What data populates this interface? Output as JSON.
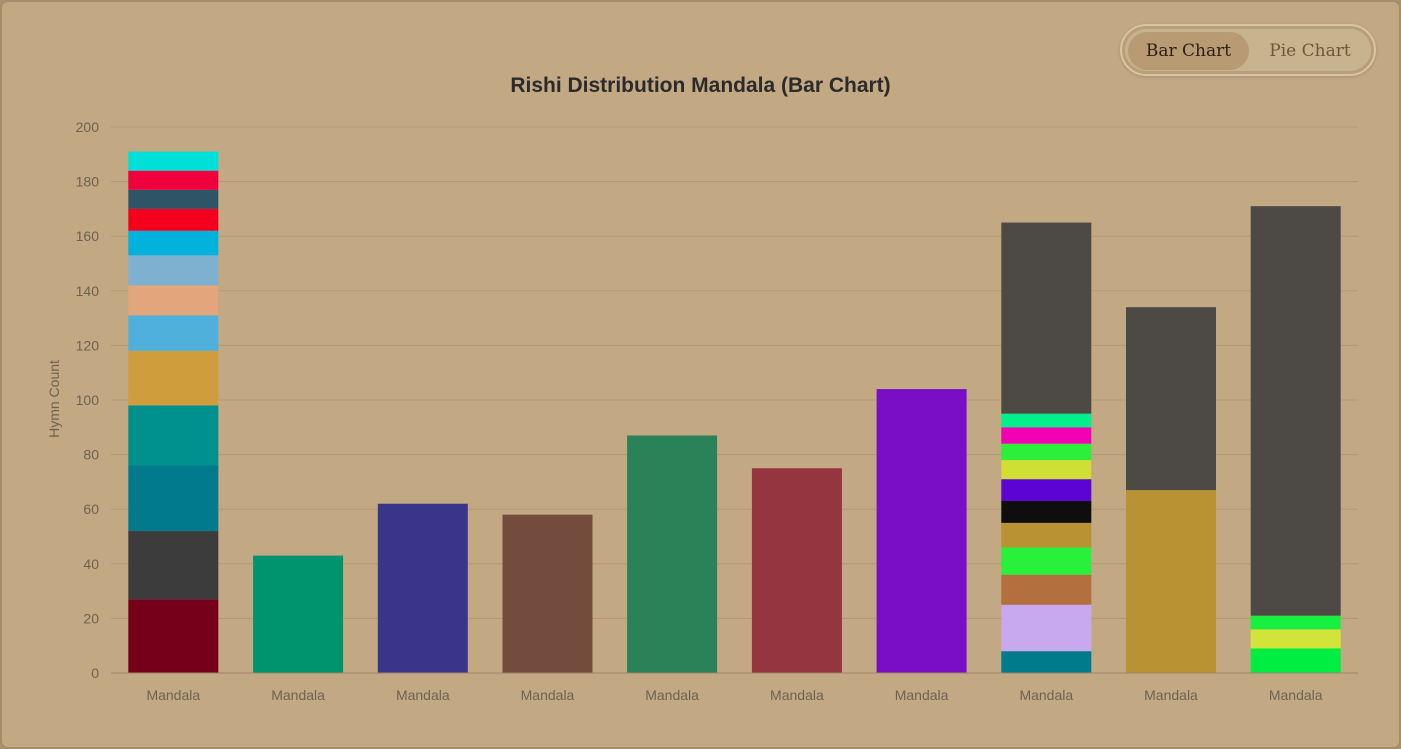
{
  "toggle": {
    "bar_label": "Bar Chart",
    "pie_label": "Pie Chart"
  },
  "chart_data": {
    "type": "bar",
    "stacked": true,
    "title": "Rishi Distribution Mandala (Bar Chart)",
    "xlabel": "",
    "ylabel": "Hymn Count",
    "ylim": [
      0,
      200
    ],
    "yticks": [
      0,
      20,
      40,
      60,
      80,
      100,
      120,
      140,
      160,
      180,
      200
    ],
    "grid": true,
    "categories": [
      "Mandala",
      "Mandala",
      "Mandala",
      "Mandala",
      "Mandala",
      "Mandala",
      "Mandala",
      "Mandala",
      "Mandala",
      "Mandala"
    ],
    "bars": [
      {
        "segments": [
          {
            "value": 27,
            "color": "#76001a"
          },
          {
            "value": 25,
            "color": "#3c3c3c"
          },
          {
            "value": 24,
            "color": "#007a8c"
          },
          {
            "value": 22,
            "color": "#00918f"
          },
          {
            "value": 20,
            "color": "#cf9d3b"
          },
          {
            "value": 13,
            "color": "#4fb0dc"
          },
          {
            "value": 11,
            "color": "#e3a67c"
          },
          {
            "value": 11,
            "color": "#7eb1cf"
          },
          {
            "value": 9,
            "color": "#00b2dc"
          },
          {
            "value": 8,
            "color": "#f4001e"
          },
          {
            "value": 7,
            "color": "#2e5467"
          },
          {
            "value": 7,
            "color": "#f0003c"
          },
          {
            "value": 7,
            "color": "#00e0d8"
          }
        ]
      },
      {
        "segments": [
          {
            "value": 43,
            "color": "#00946e"
          }
        ]
      },
      {
        "segments": [
          {
            "value": 62,
            "color": "#39358b"
          }
        ]
      },
      {
        "segments": [
          {
            "value": 58,
            "color": "#744c3e"
          }
        ]
      },
      {
        "segments": [
          {
            "value": 87,
            "color": "#2a8259"
          }
        ]
      },
      {
        "segments": [
          {
            "value": 75,
            "color": "#94353f"
          }
        ]
      },
      {
        "segments": [
          {
            "value": 104,
            "color": "#7a0ec7"
          }
        ]
      },
      {
        "segments": [
          {
            "value": 8,
            "color": "#007b8c"
          },
          {
            "value": 17,
            "color": "#c8a8ee"
          },
          {
            "value": 11,
            "color": "#b36f3e"
          },
          {
            "value": 10,
            "color": "#29f03b"
          },
          {
            "value": 9,
            "color": "#b99233"
          },
          {
            "value": 8,
            "color": "#0f0d0e"
          },
          {
            "value": 8,
            "color": "#5b04d4"
          },
          {
            "value": 7,
            "color": "#cfdf33"
          },
          {
            "value": 6,
            "color": "#2cef3c"
          },
          {
            "value": 6,
            "color": "#f400b4"
          },
          {
            "value": 5,
            "color": "#00f08e"
          },
          {
            "value": 70,
            "color": "#4d4945"
          }
        ]
      },
      {
        "segments": [
          {
            "value": 67,
            "color": "#b99233"
          },
          {
            "value": 67,
            "color": "#4d4945"
          }
        ]
      },
      {
        "segments": [
          {
            "value": 9,
            "color": "#00ee41"
          },
          {
            "value": 7,
            "color": "#d2e43a"
          },
          {
            "value": 5,
            "color": "#16f040"
          },
          {
            "value": 150,
            "color": "#4d4945"
          }
        ]
      }
    ]
  }
}
